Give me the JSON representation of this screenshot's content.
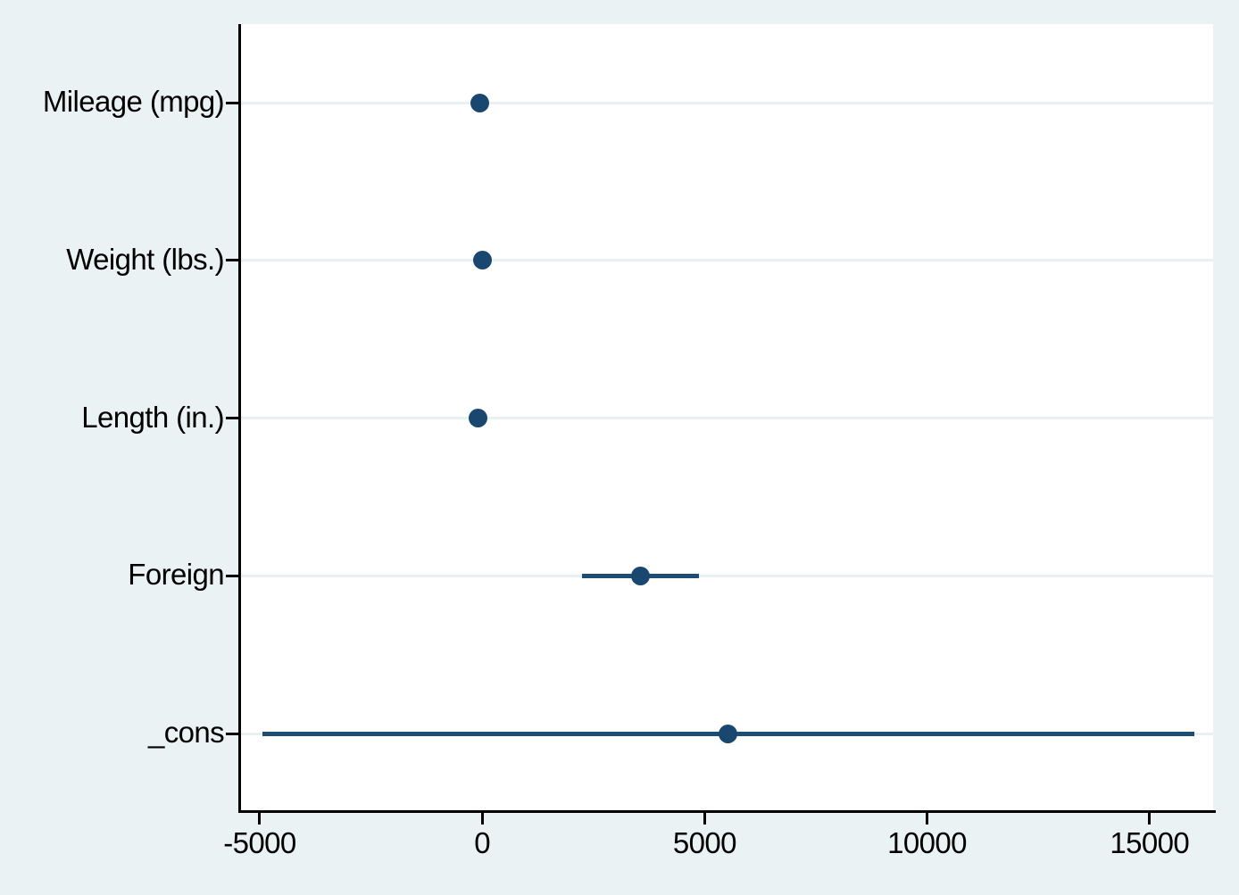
{
  "style": {
    "background_color": "#eaf2f3",
    "plot_background_color": "#ffffff",
    "gridline_color": "#e7f0f2",
    "axis_color": "#000000",
    "text_color": "#000000",
    "marker_color": "#1a476f",
    "ci_line_color": "#1d4d74"
  },
  "chart_data": {
    "type": "scatter",
    "subtype": "coefficient_plot_with_confidence_intervals",
    "orientation": "horizontal",
    "title": "",
    "xlabel": "",
    "ylabel": "",
    "legend": "none",
    "grid": "light horizontal gridline at each category",
    "xlim": [
      -5420,
      16430
    ],
    "x_ticks": [
      -5000,
      0,
      5000,
      10000,
      15000
    ],
    "x_tick_labels": [
      "-5000",
      "0",
      "5000",
      "10000",
      "15000"
    ],
    "categories": [
      "Mileage (mpg)",
      "Weight (lbs.)",
      "Length (in.)",
      "Foreign",
      "_cons"
    ],
    "points": [
      {
        "label": "Mileage (mpg)",
        "estimate": -50,
        "ci_low": -50,
        "ci_high": -50,
        "ci_visible": false
      },
      {
        "label": "Weight (lbs.)",
        "estimate": 0,
        "ci_low": 0,
        "ci_high": 0,
        "ci_visible": false
      },
      {
        "label": "Length (in.)",
        "estimate": -100,
        "ci_low": -100,
        "ci_high": -100,
        "ci_visible": false
      },
      {
        "label": "Foreign",
        "estimate": 3550,
        "ci_low": 2240,
        "ci_high": 4870,
        "ci_visible": true
      },
      {
        "label": "_cons",
        "estimate": 5520,
        "ci_low": -4940,
        "ci_high": 16000,
        "ci_visible": true
      }
    ]
  }
}
